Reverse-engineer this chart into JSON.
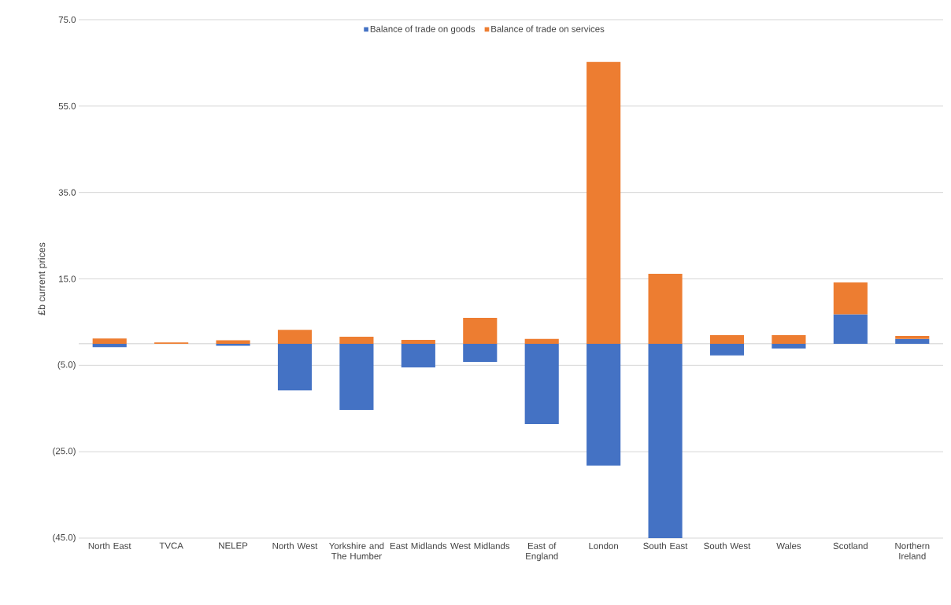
{
  "chart_data": {
    "type": "bar",
    "stacked": true,
    "ylabel": "£b current prices",
    "categories": [
      "North East",
      "TVCA",
      "NELEP",
      "North West",
      "Yorkshire and The Humber",
      "East Midlands",
      "West Midlands",
      "East of England",
      "London",
      "South East",
      "South West",
      "Wales",
      "Scotland",
      "Northern Ireland"
    ],
    "series": [
      {
        "name": "Balance of trade on goods",
        "color": "#4472c4",
        "values": [
          -0.8,
          0.0,
          -0.5,
          -10.8,
          -15.3,
          -5.5,
          -4.2,
          -18.6,
          -28.2,
          -45.0,
          -2.7,
          -1.1,
          6.8,
          1.1
        ]
      },
      {
        "name": "Balance of trade on services",
        "color": "#ed7d31",
        "values": [
          1.2,
          0.3,
          0.8,
          3.2,
          1.6,
          0.9,
          6.0,
          1.1,
          65.2,
          16.2,
          2.0,
          2.0,
          7.4,
          0.7
        ]
      }
    ],
    "ylim": [
      -45,
      75
    ],
    "yticks": [
      {
        "value": -45,
        "label": "(45.0)"
      },
      {
        "value": -25,
        "label": "(25.0)"
      },
      {
        "value": -5,
        "label": "(5.0)"
      },
      {
        "value": 15,
        "label": "15.0"
      },
      {
        "value": 35,
        "label": "35.0"
      },
      {
        "value": 55,
        "label": "55.0"
      },
      {
        "value": 75,
        "label": "75.0"
      }
    ],
    "grid": "y",
    "legend": "top"
  }
}
